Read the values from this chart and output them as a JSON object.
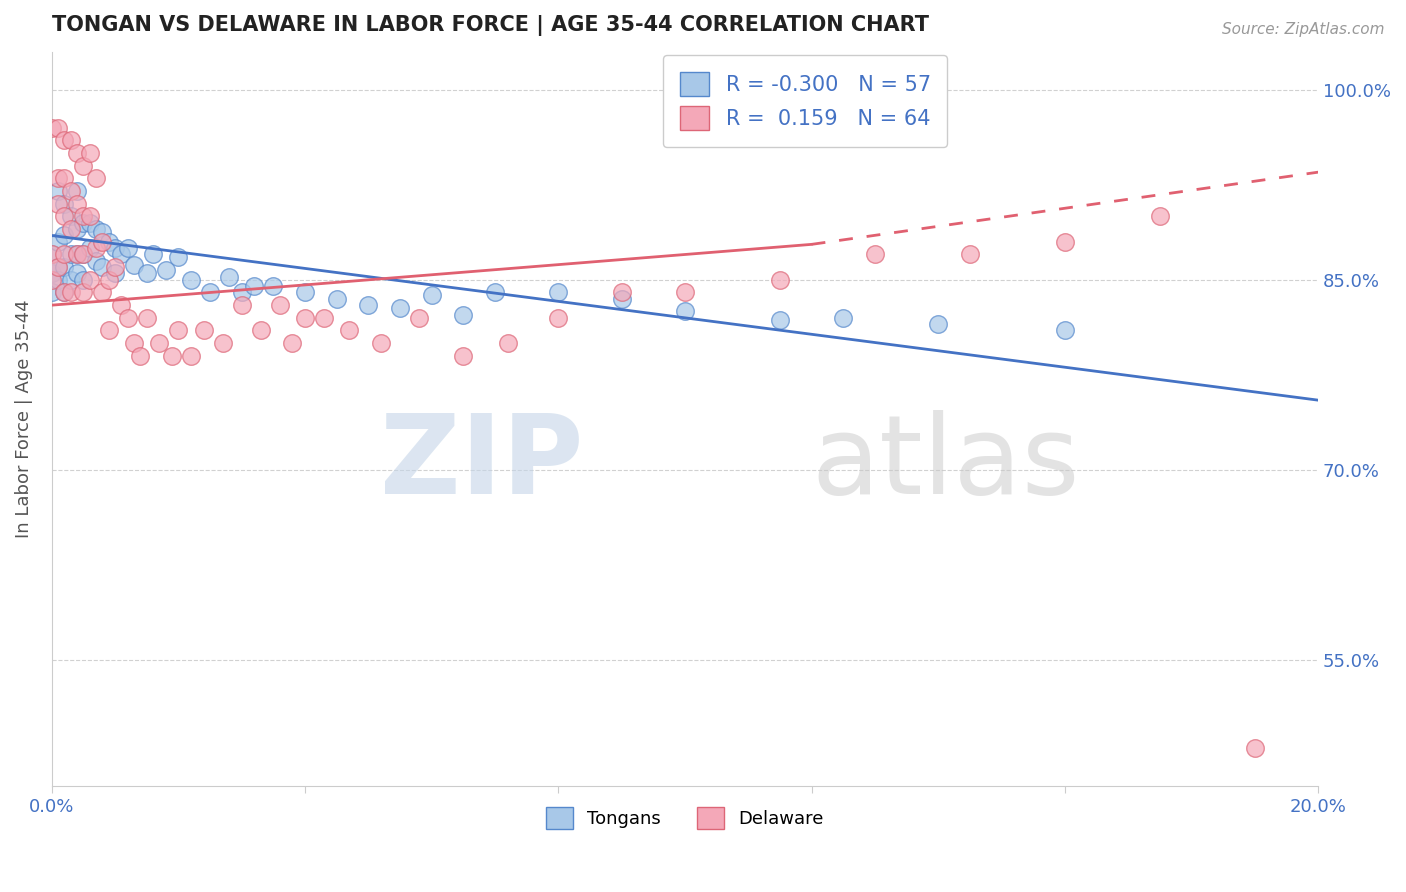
{
  "title": "TONGAN VS DELAWARE IN LABOR FORCE | AGE 35-44 CORRELATION CHART",
  "source_text": "Source: ZipAtlas.com",
  "ylabel": "In Labor Force | Age 35-44",
  "xlim": [
    0.0,
    0.2
  ],
  "ylim": [
    0.45,
    1.03
  ],
  "y_ticks": [
    0.55,
    0.7,
    0.85,
    1.0
  ],
  "y_tick_labels": [
    "55.0%",
    "70.0%",
    "85.0%",
    "100.0%"
  ],
  "x_tick_positions": [
    0.0,
    0.04,
    0.08,
    0.12,
    0.16,
    0.2
  ],
  "x_tick_labels": [
    "0.0%",
    "",
    "",
    "",
    "",
    "20.0%"
  ],
  "tongan_color": "#a8c8e8",
  "delaware_color": "#f4a8b8",
  "tongan_edge_color": "#5588cc",
  "delaware_edge_color": "#dd6677",
  "tongan_line_color": "#4472c4",
  "delaware_line_color": "#e06070",
  "background_color": "#ffffff",
  "grid_color": "#cccccc",
  "tongan_scatter_x": [
    0.0,
    0.0,
    0.0,
    0.001,
    0.001,
    0.001,
    0.001,
    0.002,
    0.002,
    0.002,
    0.002,
    0.003,
    0.003,
    0.003,
    0.004,
    0.004,
    0.004,
    0.004,
    0.005,
    0.005,
    0.005,
    0.006,
    0.006,
    0.007,
    0.007,
    0.008,
    0.008,
    0.009,
    0.01,
    0.01,
    0.011,
    0.012,
    0.013,
    0.015,
    0.016,
    0.018,
    0.02,
    0.022,
    0.025,
    0.028,
    0.03,
    0.032,
    0.035,
    0.04,
    0.045,
    0.05,
    0.055,
    0.06,
    0.065,
    0.07,
    0.08,
    0.09,
    0.1,
    0.115,
    0.125,
    0.14,
    0.16
  ],
  "tongan_scatter_y": [
    0.87,
    0.855,
    0.84,
    0.92,
    0.88,
    0.86,
    0.85,
    0.91,
    0.885,
    0.86,
    0.84,
    0.9,
    0.87,
    0.85,
    0.92,
    0.89,
    0.87,
    0.855,
    0.895,
    0.87,
    0.85,
    0.895,
    0.875,
    0.89,
    0.865,
    0.888,
    0.86,
    0.88,
    0.875,
    0.855,
    0.87,
    0.875,
    0.862,
    0.855,
    0.87,
    0.858,
    0.868,
    0.85,
    0.84,
    0.852,
    0.84,
    0.845,
    0.845,
    0.84,
    0.835,
    0.83,
    0.828,
    0.838,
    0.822,
    0.84,
    0.84,
    0.835,
    0.825,
    0.818,
    0.82,
    0.815,
    0.81
  ],
  "delaware_scatter_x": [
    0.0,
    0.0,
    0.0,
    0.001,
    0.001,
    0.001,
    0.001,
    0.002,
    0.002,
    0.002,
    0.002,
    0.002,
    0.003,
    0.003,
    0.003,
    0.003,
    0.004,
    0.004,
    0.004,
    0.005,
    0.005,
    0.005,
    0.005,
    0.006,
    0.006,
    0.006,
    0.007,
    0.007,
    0.008,
    0.008,
    0.009,
    0.009,
    0.01,
    0.011,
    0.012,
    0.013,
    0.014,
    0.015,
    0.017,
    0.019,
    0.02,
    0.022,
    0.024,
    0.027,
    0.03,
    0.033,
    0.036,
    0.038,
    0.04,
    0.043,
    0.047,
    0.052,
    0.058,
    0.065,
    0.072,
    0.08,
    0.09,
    0.1,
    0.115,
    0.13,
    0.145,
    0.16,
    0.175,
    0.19
  ],
  "delaware_scatter_y": [
    0.97,
    0.87,
    0.85,
    0.97,
    0.93,
    0.91,
    0.86,
    0.96,
    0.93,
    0.9,
    0.87,
    0.84,
    0.96,
    0.92,
    0.89,
    0.84,
    0.95,
    0.91,
    0.87,
    0.94,
    0.9,
    0.87,
    0.84,
    0.95,
    0.9,
    0.85,
    0.93,
    0.875,
    0.88,
    0.84,
    0.85,
    0.81,
    0.86,
    0.83,
    0.82,
    0.8,
    0.79,
    0.82,
    0.8,
    0.79,
    0.81,
    0.79,
    0.81,
    0.8,
    0.83,
    0.81,
    0.83,
    0.8,
    0.82,
    0.82,
    0.81,
    0.8,
    0.82,
    0.79,
    0.8,
    0.82,
    0.84,
    0.84,
    0.85,
    0.87,
    0.87,
    0.88,
    0.9,
    0.48
  ],
  "tongan_R": -0.3,
  "tongan_N": 57,
  "delaware_R": 0.159,
  "delaware_N": 64
}
